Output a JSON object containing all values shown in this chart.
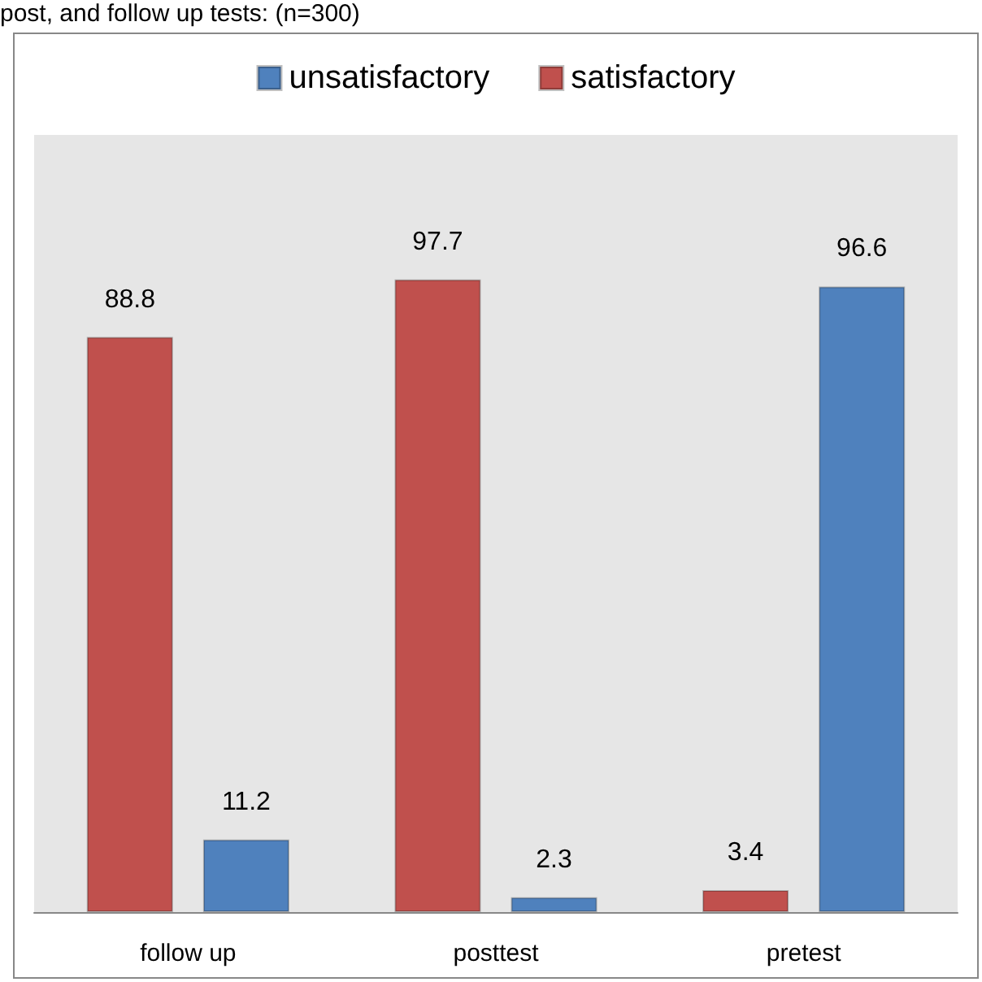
{
  "chart_data": {
    "type": "bar",
    "title": "post, and follow up tests: (n=300)",
    "categories": [
      "follow up",
      "posttest",
      "pretest"
    ],
    "series": [
      {
        "name": "satisfactory",
        "color": "#c0504d",
        "values": [
          88.8,
          97.7,
          3.4
        ]
      },
      {
        "name": "unsatisfactory",
        "color": "#4f81bd",
        "values": [
          11.2,
          2.3,
          96.6
        ]
      }
    ],
    "ylim": [
      0,
      120
    ],
    "tick_labels": "x",
    "data_labels": true,
    "legend": "top",
    "grid": false
  }
}
